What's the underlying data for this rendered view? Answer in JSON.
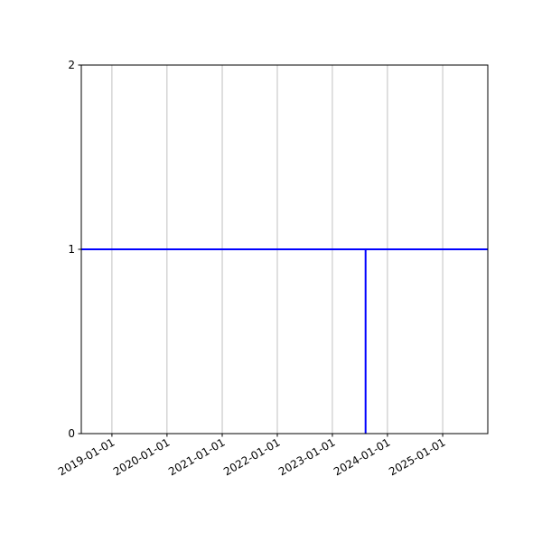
{
  "chart_data": {
    "type": "line",
    "title": "",
    "xlabel": "",
    "ylabel": "",
    "x_axis_type": "date",
    "xlim": [
      "2018-06-12",
      "2025-10-27"
    ],
    "ylim": [
      0,
      2
    ],
    "xticks": [
      "2019-01-01",
      "2020-01-01",
      "2021-01-01",
      "2022-01-01",
      "2023-01-01",
      "2024-01-01",
      "2025-01-01"
    ],
    "yticks": [
      "0",
      "1",
      "2"
    ],
    "grid": "vertical (x-axis only)",
    "legend": "none",
    "series": [
      {
        "color": "#0000ff",
        "segments": [
          {
            "x": [
              "2018-06-12",
              "2025-10-27"
            ],
            "y": [
              1,
              1
            ]
          },
          {
            "x": [
              "2023-08-09",
              "2023-08-09"
            ],
            "y": [
              0,
              1
            ]
          }
        ]
      }
    ]
  }
}
